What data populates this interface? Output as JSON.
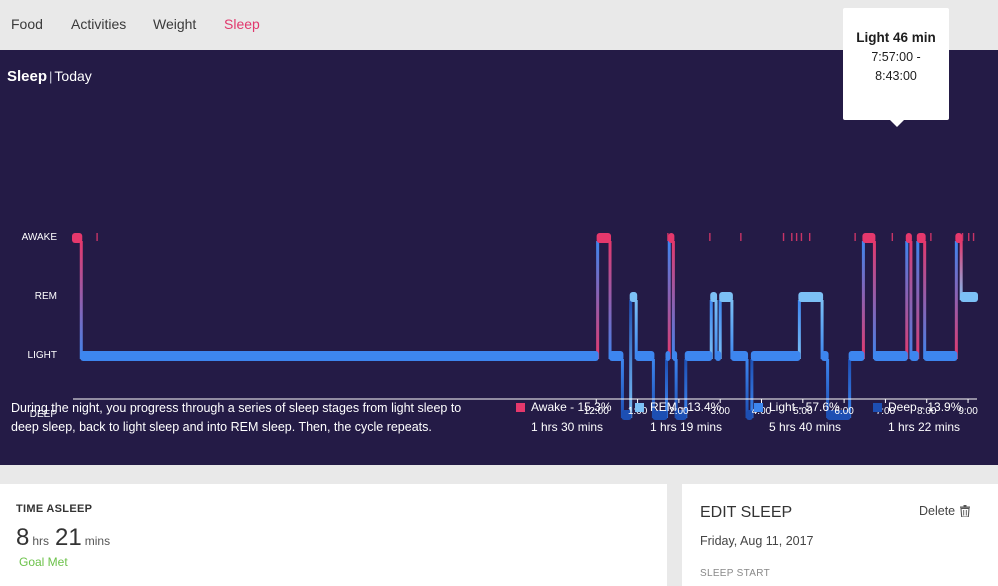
{
  "nav": {
    "tabs": [
      {
        "label": "Food",
        "active": false
      },
      {
        "label": "Activities",
        "active": false
      },
      {
        "label": "Weight",
        "active": false
      },
      {
        "label": "Sleep",
        "active": true
      }
    ]
  },
  "panel": {
    "title": "Sleep",
    "subtitle": "Today",
    "description": "During the night, you progress through a series of sleep stages from light sleep to deep sleep, back to light sleep and into REM sleep. Then, the cycle repeats."
  },
  "tooltip": {
    "title": "Light 46 min",
    "range": "7:57:00 - 8:43:00"
  },
  "legend": [
    {
      "name": "Awake",
      "percent": "Awake - 15.3%",
      "duration": "1 hrs 30 mins",
      "color": "#e5386c"
    },
    {
      "name": "REM",
      "percent": "REM - 13.4%",
      "duration": "1 hrs 19 mins",
      "color": "#7cc0f5"
    },
    {
      "name": "Light",
      "percent": "Light - 57.6%",
      "duration": "5 hrs 40 mins",
      "color": "#3d86ef"
    },
    {
      "name": "Deep",
      "percent": "Deep - 13.9%",
      "duration": "1 hrs 22 mins",
      "color": "#1d4fb3"
    }
  ],
  "chart_data": {
    "type": "line",
    "y_categories": [
      "AWAKE",
      "REM",
      "LIGHT",
      "DEEP"
    ],
    "x_ticks": [
      "12:00",
      "1:00",
      "2:00",
      "3:00",
      "4:00",
      "5:00",
      "6:00",
      "7:00",
      "8:00",
      "9:00"
    ],
    "x_range": [
      "11:20",
      "9:13"
    ],
    "stage_colors": {
      "AWAKE": "#e5386c",
      "REM": "#7cc0f5",
      "LIGHT": "#3d86ef",
      "DEEP": "#1d4fb3"
    },
    "segments": [
      {
        "start": "11:20",
        "end": "11:32",
        "stage": "AWAKE"
      },
      {
        "start": "11:32",
        "end": "12:02",
        "stage": "LIGHT"
      },
      {
        "start": "12:02",
        "end": "12:20",
        "stage": "AWAKE"
      },
      {
        "start": "12:20",
        "end": "12:38",
        "stage": "LIGHT"
      },
      {
        "start": "12:38",
        "end": "12:50",
        "stage": "DEEP"
      },
      {
        "start": "12:50",
        "end": "12:58",
        "stage": "REM"
      },
      {
        "start": "12:58",
        "end": "13:23",
        "stage": "LIGHT"
      },
      {
        "start": "13:23",
        "end": "13:42",
        "stage": "DEEP"
      },
      {
        "start": "13:42",
        "end": "13:46",
        "stage": "LIGHT"
      },
      {
        "start": "13:46",
        "end": "13:52",
        "stage": "AWAKE"
      },
      {
        "start": "13:52",
        "end": "13:56",
        "stage": "LIGHT"
      },
      {
        "start": "13:56",
        "end": "14:10",
        "stage": "DEEP"
      },
      {
        "start": "14:10",
        "end": "14:47",
        "stage": "LIGHT"
      },
      {
        "start": "14:47",
        "end": "14:54",
        "stage": "REM"
      },
      {
        "start": "14:54",
        "end": "15:00",
        "stage": "LIGHT"
      },
      {
        "start": "15:00",
        "end": "15:17",
        "stage": "REM"
      },
      {
        "start": "15:17",
        "end": "15:39",
        "stage": "LIGHT"
      },
      {
        "start": "15:39",
        "end": "15:46",
        "stage": "DEEP"
      },
      {
        "start": "15:46",
        "end": "16:55",
        "stage": "LIGHT"
      },
      {
        "start": "16:55",
        "end": "17:28",
        "stage": "REM"
      },
      {
        "start": "17:28",
        "end": "17:36",
        "stage": "LIGHT"
      },
      {
        "start": "17:36",
        "end": "18:08",
        "stage": "DEEP"
      },
      {
        "start": "18:08",
        "end": "18:28",
        "stage": "LIGHT"
      },
      {
        "start": "18:28",
        "end": "18:44",
        "stage": "AWAKE"
      },
      {
        "start": "18:44",
        "end": "19:31",
        "stage": "LIGHT"
      },
      {
        "start": "19:31",
        "end": "19:37",
        "stage": "AWAKE"
      },
      {
        "start": "19:37",
        "end": "19:47",
        "stage": "LIGHT"
      },
      {
        "start": "19:47",
        "end": "19:57",
        "stage": "AWAKE"
      },
      {
        "start": "19:57",
        "end": "20:43",
        "stage": "LIGHT"
      },
      {
        "start": "20:43",
        "end": "20:50",
        "stage": "AWAKE"
      },
      {
        "start": "20:50",
        "end": "21:13",
        "stage": "REM"
      }
    ],
    "awake_ticks": [
      "11:55",
      "13:44",
      "14:45",
      "15:30",
      "16:32",
      "16:44",
      "16:51",
      "16:58",
      "17:10",
      "18:16",
      "19:10",
      "20:06",
      "20:52",
      "21:01",
      "21:08"
    ]
  },
  "time_asleep": {
    "title": "TIME ASLEEP",
    "hours": "8",
    "hours_unit": "hrs",
    "mins": "21",
    "mins_unit": "mins",
    "goal": "Goal Met"
  },
  "edit_sleep": {
    "title": "EDIT SLEEP",
    "delete_label": "Delete",
    "date": "Friday, Aug 11, 2017",
    "start_label": "SLEEP START"
  }
}
